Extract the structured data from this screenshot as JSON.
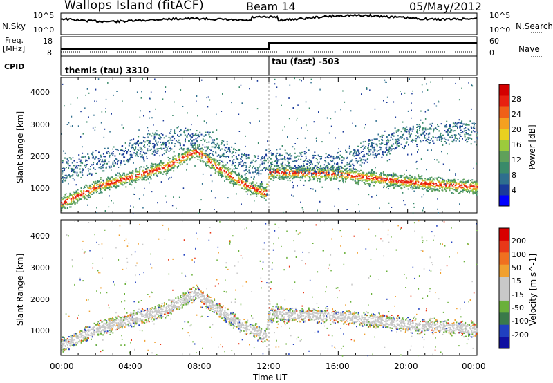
{
  "header": {
    "station": "Wallops Island (fitACF)",
    "beam": "Beam 14",
    "date": "05/May/2012"
  },
  "top_panels": {
    "nsky": {
      "label": "N.Sky",
      "right_label": "N.Search",
      "ticks_left": [
        "10^5",
        "10^0"
      ],
      "ticks_right": [
        "10^5",
        "10^0"
      ]
    },
    "freq": {
      "label_line1": "Freq.",
      "label_line2": "[MHz]",
      "right_label": "Nave",
      "ticks_left": [
        "18",
        "8"
      ],
      "ticks_right": [
        "60",
        "0"
      ]
    },
    "cpid": {
      "label": "CPID",
      "segments": [
        {
          "name": "themis (tau) 3310",
          "start_hour": 0,
          "end_hour": 12
        },
        {
          "name": "tau (fast) -503",
          "start_hour": 12,
          "end_hour": 24
        }
      ]
    }
  },
  "x_axis": {
    "label": "Time UT",
    "ticks": [
      "00:00",
      "04:00",
      "08:00",
      "12:00",
      "16:00",
      "20:00",
      "00:00"
    ]
  },
  "chart_data": [
    {
      "type": "heatmap",
      "panel": "power",
      "ylabel": "Slant Range [km]",
      "yticks": [
        "1000",
        "2000",
        "3000",
        "4000"
      ],
      "ylim": [
        500,
        4600
      ],
      "xlim": [
        0,
        24
      ],
      "colorbar": {
        "label": "Power [dB]",
        "ticks": [
          "28",
          "24",
          "20",
          "16",
          "12",
          "8",
          "4"
        ],
        "colors": [
          "#0000ff",
          "#1a3a9a",
          "#2e6e8e",
          "#3a8a6a",
          "#5fa05a",
          "#9ccb3c",
          "#e8d020",
          "#f5a020",
          "#f06018",
          "#e82010",
          "#d40000"
        ]
      },
      "echo_bands": [
        {
          "name": "main-scatter",
          "range_km": [
            [
              0,
              800
            ],
            [
              2,
              1300
            ],
            [
              4,
              1600
            ],
            [
              6,
              1900
            ],
            [
              7.8,
              2400
            ],
            [
              9,
              1900
            ],
            [
              10.5,
              1400
            ],
            [
              11.8,
              1100
            ],
            [
              12,
              1750
            ],
            [
              16,
              1700
            ],
            [
              20,
              1450
            ],
            [
              24,
              1300
            ]
          ]
        },
        {
          "name": "upper-scatter",
          "range_km": [
            [
              0,
              1800
            ],
            [
              3,
              2200
            ],
            [
              6,
              2700
            ],
            [
              7.5,
              2800
            ],
            [
              9,
              2500
            ],
            [
              11,
              1900
            ],
            [
              12,
              2100
            ],
            [
              16,
              2000
            ],
            [
              20,
              2900
            ],
            [
              24,
              3000
            ]
          ]
        }
      ]
    },
    {
      "type": "heatmap",
      "panel": "velocity",
      "ylabel": "Slant Range [km]",
      "yticks": [
        "1000",
        "2000",
        "3000",
        "4000"
      ],
      "ylim": [
        500,
        4600
      ],
      "xlim": [
        0,
        24
      ],
      "colorbar": {
        "label": "Velocity [m s^-1]",
        "ticks": [
          "200",
          "100",
          "50",
          "15",
          "-15",
          "-50",
          "-100",
          "-200"
        ],
        "colors": [
          "#1010a0",
          "#2040c0",
          "#3a7a4a",
          "#6ab03a",
          "#c8c8c8",
          "#c8c8c8",
          "#f0a030",
          "#f07020",
          "#e83818",
          "#d80000"
        ]
      },
      "echo_bands": [
        {
          "name": "ground-scatter",
          "range_km": [
            [
              0,
              800
            ],
            [
              2,
              1300
            ],
            [
              4,
              1600
            ],
            [
              6,
              1900
            ],
            [
              7.8,
              2400
            ],
            [
              9,
              1900
            ],
            [
              10.5,
              1400
            ],
            [
              11.8,
              1100
            ],
            [
              12,
              1750
            ],
            [
              16,
              1700
            ],
            [
              20,
              1450
            ],
            [
              24,
              1300
            ]
          ]
        }
      ]
    }
  ]
}
